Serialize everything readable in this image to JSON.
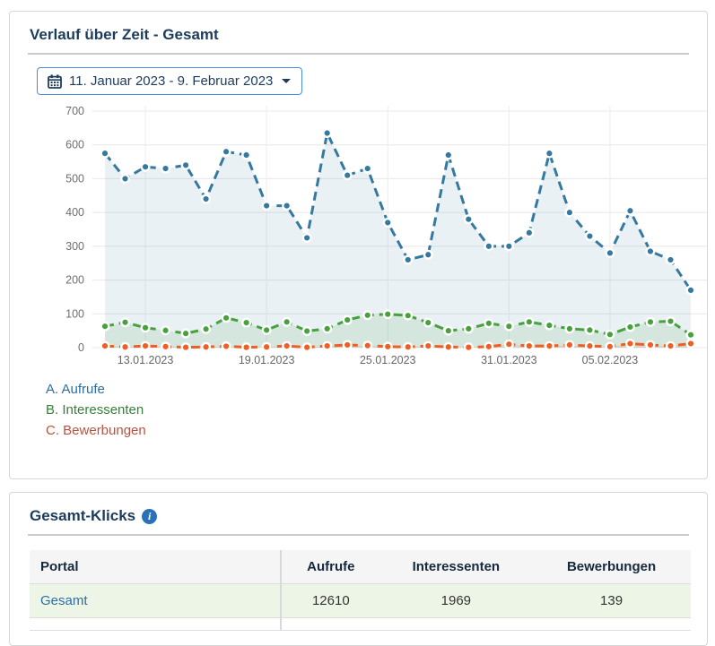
{
  "card_verlauf": {
    "title": "Verlauf über Zeit - Gesamt",
    "date_range_button": {
      "label": "11. Januar 2023 - 9. Februar 2023"
    },
    "legend": [
      {
        "label": "A. Aufrufe",
        "color": "#2e6e9e"
      },
      {
        "label": "B. Interessenten",
        "color": "#37813a"
      },
      {
        "label": "C. Bewerbungen",
        "color": "#b8523f"
      }
    ]
  },
  "chart_data": {
    "type": "line",
    "x": [
      "11.01.2023",
      "12.01.2023",
      "13.01.2023",
      "14.01.2023",
      "15.01.2023",
      "16.01.2023",
      "17.01.2023",
      "18.01.2023",
      "19.01.2023",
      "20.01.2023",
      "21.01.2023",
      "22.01.2023",
      "23.01.2023",
      "24.01.2023",
      "25.01.2023",
      "26.01.2023",
      "27.01.2023",
      "28.01.2023",
      "29.01.2023",
      "30.01.2023",
      "31.01.2023",
      "01.02.2023",
      "02.02.2023",
      "03.02.2023",
      "04.02.2023",
      "05.02.2023",
      "06.02.2023",
      "07.02.2023",
      "08.02.2023",
      "09.02.2023"
    ],
    "x_tick_labels": [
      "13.01.2023",
      "19.01.2023",
      "25.01.2023",
      "31.01.2023",
      "05.02.2023"
    ],
    "x_tick_indices": [
      2,
      8,
      14,
      20,
      25
    ],
    "ylim": [
      0,
      700
    ],
    "y_ticks": [
      0,
      100,
      200,
      300,
      400,
      500,
      600,
      700
    ],
    "grid": true,
    "legend_position": "bottom-left",
    "series": [
      {
        "name": "A. Aufrufe",
        "color": "#35799f",
        "fill": "rgba(53,121,161,0.10)",
        "values": [
          575,
          500,
          535,
          530,
          540,
          440,
          580,
          570,
          420,
          420,
          325,
          635,
          510,
          530,
          370,
          260,
          275,
          570,
          380,
          300,
          300,
          340,
          575,
          400,
          330,
          280,
          405,
          285,
          260,
          170
        ]
      },
      {
        "name": "B. Interessenten",
        "color": "#47a23e",
        "fill": "rgba(71,162,62,0.13)",
        "values": [
          63,
          75,
          59,
          51,
          42,
          55,
          88,
          74,
          52,
          76,
          49,
          56,
          82,
          96,
          99,
          95,
          74,
          50,
          56,
          72,
          63,
          76,
          66,
          56,
          52,
          39,
          61,
          76,
          78,
          38
        ]
      },
      {
        "name": "C. Bewerbungen",
        "color": "#f05e23",
        "fill": "rgba(240,94,35,0.10)",
        "values": [
          5,
          2,
          5,
          3,
          1,
          2,
          4,
          1,
          2,
          5,
          1,
          5,
          8,
          6,
          3,
          2,
          5,
          2,
          1,
          3,
          10,
          5,
          5,
          8,
          5,
          3,
          12,
          8,
          5,
          12
        ]
      }
    ]
  },
  "card_klicks": {
    "title": "Gesamt-Klicks",
    "table": {
      "columns": [
        "Portal",
        "Aufrufe",
        "Interessenten",
        "Bewerbungen"
      ],
      "rows": [
        {
          "portal": "Gesamt",
          "aufrufe": "12610",
          "interessenten": "1969",
          "bewerbungen": "139"
        }
      ]
    }
  }
}
